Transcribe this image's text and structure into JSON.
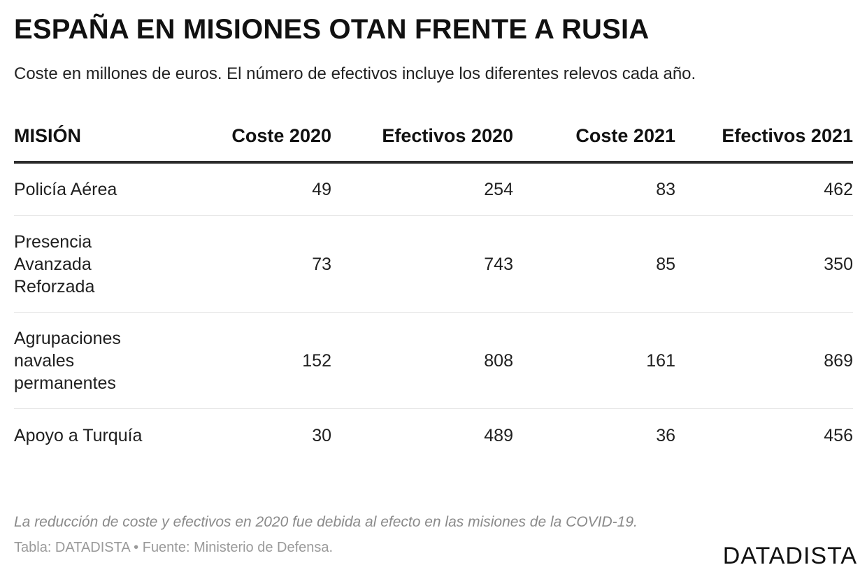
{
  "title": "ESPAÑA EN MISIONES OTAN FRENTE A RUSIA",
  "subtitle": "Coste en millones de euros. El número de efectivos incluye los diferentes relevos cada año.",
  "chart_data": {
    "type": "table",
    "title": "ESPAÑA EN MISIONES OTAN FRENTE A RUSIA",
    "subtitle": "Coste en millones de euros. El número de efectivos incluye los diferentes relevos cada año.",
    "columns": [
      "MISIÓN",
      "Coste 2020",
      "Efectivos 2020",
      "Coste 2021",
      "Efectivos 2021"
    ],
    "rows": [
      [
        "Policía Aérea",
        "49",
        "254",
        "83",
        "462"
      ],
      [
        "Presencia Avanzada Reforzada",
        "73",
        "743",
        "85",
        "350"
      ],
      [
        "Agrupaciones navales permanentes",
        "152",
        "808",
        "161",
        "869"
      ],
      [
        "Apoyo a Turquía",
        "30",
        "489",
        "36",
        "456"
      ]
    ]
  },
  "note": "La reducción de coste y efectivos en 2020 fue debida al efecto en las misiones de la COVID-19.",
  "source": "Tabla: DATADISTA • Fuente: Ministerio de Defensa.",
  "brand": "DATADISTA"
}
